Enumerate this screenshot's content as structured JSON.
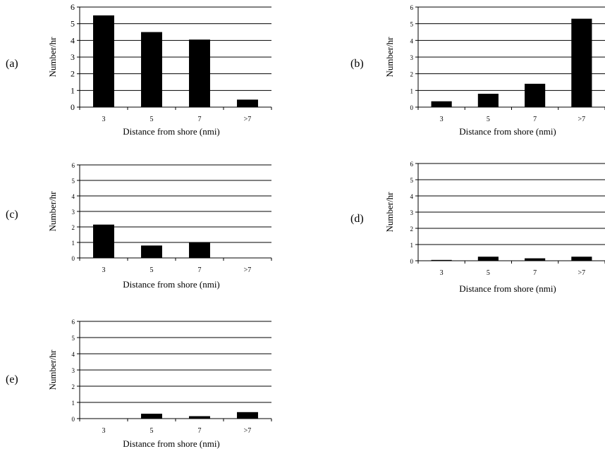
{
  "chart_data": [
    {
      "type": "bar",
      "panel_label": "(a)",
      "categories": [
        "3",
        "5",
        "7",
        ">7"
      ],
      "values": [
        5.5,
        4.5,
        4.05,
        0.45
      ],
      "xlabel": "Distance from shore (nmi)",
      "ylabel": "Number/hr",
      "ylim": [
        0,
        6
      ],
      "yticks": [
        "0",
        "1",
        "2",
        "3",
        "4",
        "5",
        "6"
      ],
      "grid": true
    },
    {
      "type": "bar",
      "panel_label": "(b)",
      "categories": [
        "3",
        "5",
        "7",
        ">7"
      ],
      "values": [
        0.35,
        0.8,
        1.4,
        5.3
      ],
      "xlabel": "Distance from shore (nmi)",
      "ylabel": "Number/hr",
      "ylim": [
        0,
        6
      ],
      "yticks": [
        "0",
        "1",
        "2",
        "3",
        "4",
        "5",
        "6"
      ],
      "grid": true
    },
    {
      "type": "bar",
      "panel_label": "(c)",
      "categories": [
        "3",
        "5",
        "7",
        ">7"
      ],
      "values": [
        2.15,
        0.8,
        1.0,
        0
      ],
      "xlabel": "Distance from shore (nmi)",
      "ylabel": "Number/hr",
      "ylim": [
        0,
        6
      ],
      "yticks": [
        "0",
        "1",
        "2",
        "3",
        "4",
        "5",
        "6"
      ],
      "grid": true
    },
    {
      "type": "bar",
      "panel_label": "(d)",
      "categories": [
        "3",
        "5",
        "7",
        ">7"
      ],
      "values": [
        0.05,
        0.25,
        0.15,
        0.25
      ],
      "xlabel": "Distance from shore (nmi)",
      "ylabel": "Number/hr",
      "ylim": [
        0,
        6
      ],
      "yticks": [
        "0",
        "1",
        "2",
        "3",
        "4",
        "5",
        "6"
      ],
      "grid": true
    },
    {
      "type": "bar",
      "panel_label": "(e)",
      "categories": [
        "3",
        "5",
        "7",
        ">7"
      ],
      "values": [
        0,
        0.3,
        0.15,
        0.4
      ],
      "xlabel": "Distance from shore (nmi)",
      "ylabel": "Number/hr",
      "ylim": [
        0,
        6
      ],
      "yticks": [
        "0",
        "1",
        "2",
        "3",
        "4",
        "5",
        "6"
      ],
      "grid": true
    }
  ]
}
